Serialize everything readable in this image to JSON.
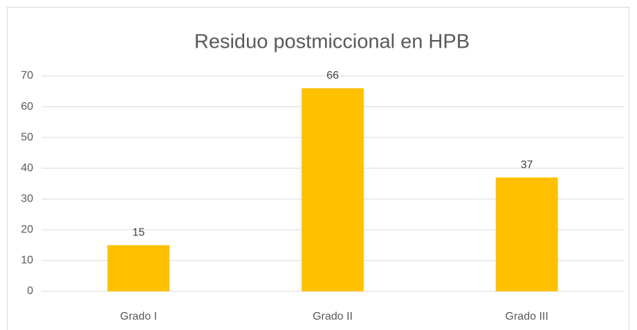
{
  "chart_data": {
    "type": "bar",
    "title": "Residuo postmiccional en HPB",
    "categories": [
      "Grado I",
      "Grado II",
      "Grado III"
    ],
    "values": [
      15,
      66,
      37
    ],
    "color": "#ffc000",
    "ylim": [
      0,
      70
    ],
    "yticks": [
      0,
      10,
      20,
      30,
      40,
      50,
      60,
      70
    ],
    "grid": true
  }
}
